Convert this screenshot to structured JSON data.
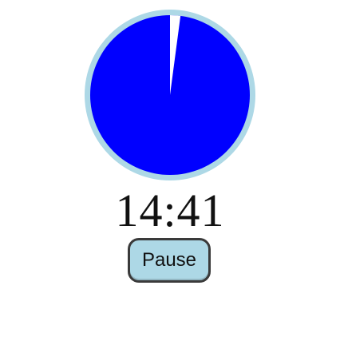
{
  "timer": {
    "display": "14:41",
    "elapsed_fraction": 0.021,
    "colors": {
      "ring": "#add8e6",
      "fill": "#0000ff",
      "gap": "#ffffff"
    }
  },
  "controls": {
    "pause_label": "Pause",
    "button_color": "#add8e6"
  }
}
